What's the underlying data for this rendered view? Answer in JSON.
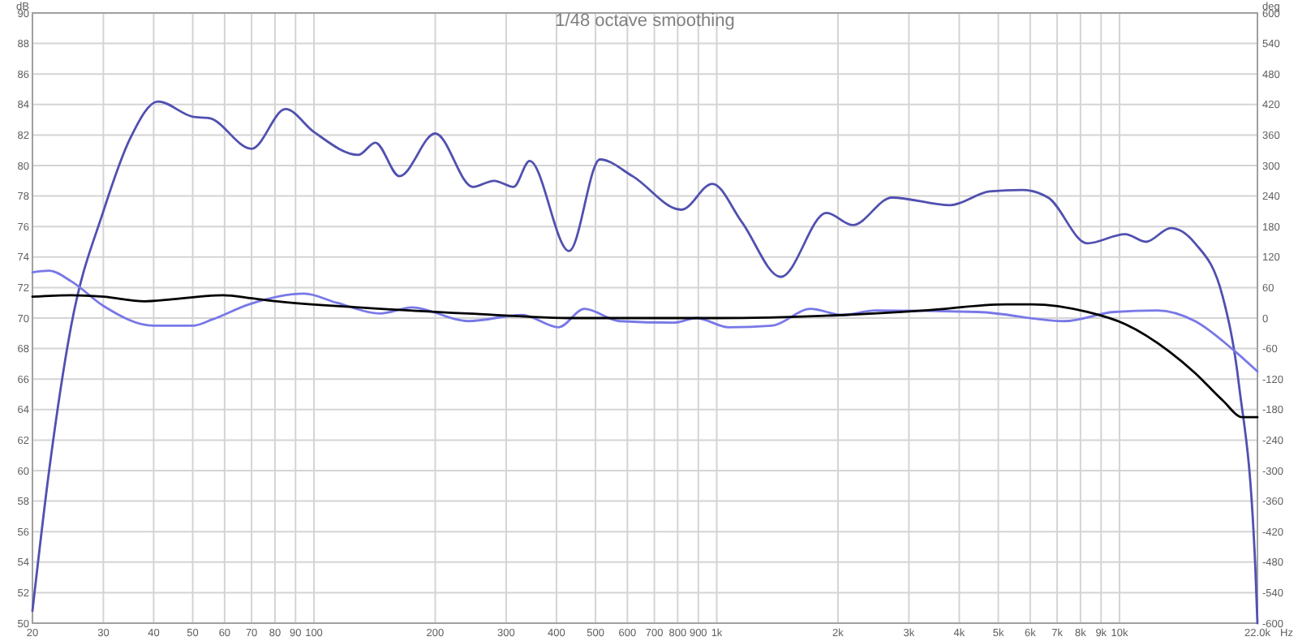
{
  "chart_data": {
    "type": "line",
    "title": "1/48 octave smoothing",
    "xlabel": "Hz",
    "ylabel": "dB",
    "y2label": "deg",
    "log": "x",
    "grid": true,
    "xlim": [
      20,
      22000
    ],
    "xticks": [
      20,
      30,
      40,
      50,
      60,
      70,
      80,
      90,
      100,
      200,
      300,
      400,
      500,
      600,
      700,
      800,
      900,
      {
        "value": 1000,
        "label": "1k"
      },
      {
        "value": 2000,
        "label": "2k"
      },
      {
        "value": 3000,
        "label": "3k"
      },
      {
        "value": 4000,
        "label": "4k"
      },
      {
        "value": 5000,
        "label": "5k"
      },
      {
        "value": 6000,
        "label": "6k"
      },
      {
        "value": 7000,
        "label": "7k"
      },
      {
        "value": 8000,
        "label": "8k"
      },
      {
        "value": 9000,
        "label": "9k"
      },
      {
        "value": 10000,
        "label": "10k"
      },
      {
        "value": 22000,
        "label": "22.0k"
      }
    ],
    "ylim": [
      50,
      90
    ],
    "yticks": [
      50,
      52,
      54,
      56,
      58,
      60,
      62,
      64,
      66,
      68,
      70,
      72,
      74,
      76,
      78,
      80,
      82,
      84,
      86,
      88,
      90
    ],
    "y2lim": [
      -600,
      600
    ],
    "y2ticks": [
      -600,
      -540,
      -480,
      -420,
      -360,
      -300,
      -240,
      -180,
      -120,
      -60,
      0,
      60,
      120,
      180,
      240,
      300,
      360,
      420,
      480,
      540,
      600
    ],
    "series": [
      {
        "color": "#5050b0",
        "x": [
          20,
          22,
          25,
          30,
          35,
          41,
          50,
          55,
          70,
          85,
          100,
          129,
          142,
          163,
          200,
          248,
          280,
          313,
          343,
          430,
          513,
          618,
          817,
          975,
          1154,
          1442,
          1874,
          2175,
          2722,
          3802,
          4760,
          5730,
          6650,
          8320,
          10330,
          11640,
          13400,
          15400,
          18040,
          19800,
          21740,
          22000
        ],
        "values": [
          50.8,
          60,
          69.6,
          77,
          81.8,
          84.2,
          83.2,
          83.1,
          81.1,
          83.7,
          82.2,
          80.7,
          81.5,
          79.3,
          82.1,
          78.6,
          79,
          78.6,
          80.3,
          74.4,
          80.4,
          79.3,
          77.1,
          78.8,
          76.3,
          72.7,
          76.9,
          76.1,
          77.9,
          77.4,
          78.3,
          78.4,
          77.9,
          74.9,
          75.5,
          75,
          75.9,
          74.9,
          71.4,
          65.6,
          53.6,
          50
        ]
      },
      {
        "color": "#7878e8",
        "axis": "y2",
        "x": [
          20,
          22,
          25,
          30,
          40,
          50,
          55.8,
          69,
          94.6,
          114,
          146,
          175,
          241,
          329,
          405,
          469,
          573,
          782,
          890,
          1070,
          1370,
          1710,
          2057,
          2480,
          4460,
          7300,
          9680,
          12400,
          15400,
          19000,
          22000
        ],
        "values": [
          90,
          93,
          72,
          24,
          -15,
          -15,
          -3,
          27,
          48,
          30,
          9,
          21,
          -6,
          6,
          -18,
          18,
          -6,
          -9,
          0,
          -18,
          -15,
          18,
          6,
          15,
          12,
          -6,
          12,
          15,
          -6,
          -60,
          -105
        ]
      },
      {
        "color": "#000000",
        "x": [
          20,
          25,
          30,
          38,
          43.4,
          59.5,
          70,
          81,
          129,
          241,
          448,
          1000,
          2057,
          3280,
          5220,
          6060,
          8320,
          10330,
          13300,
          15400,
          18040,
          20200,
          22000
        ],
        "values": [
          71.4,
          71.5,
          71.4,
          71.1,
          71.2,
          71.5,
          71.3,
          71.1,
          70.7,
          70.3,
          70,
          70,
          70.2,
          70.5,
          70.9,
          70.9,
          70.4,
          69.6,
          67.8,
          66.4,
          64.6,
          63.5,
          63.5
        ]
      }
    ]
  }
}
